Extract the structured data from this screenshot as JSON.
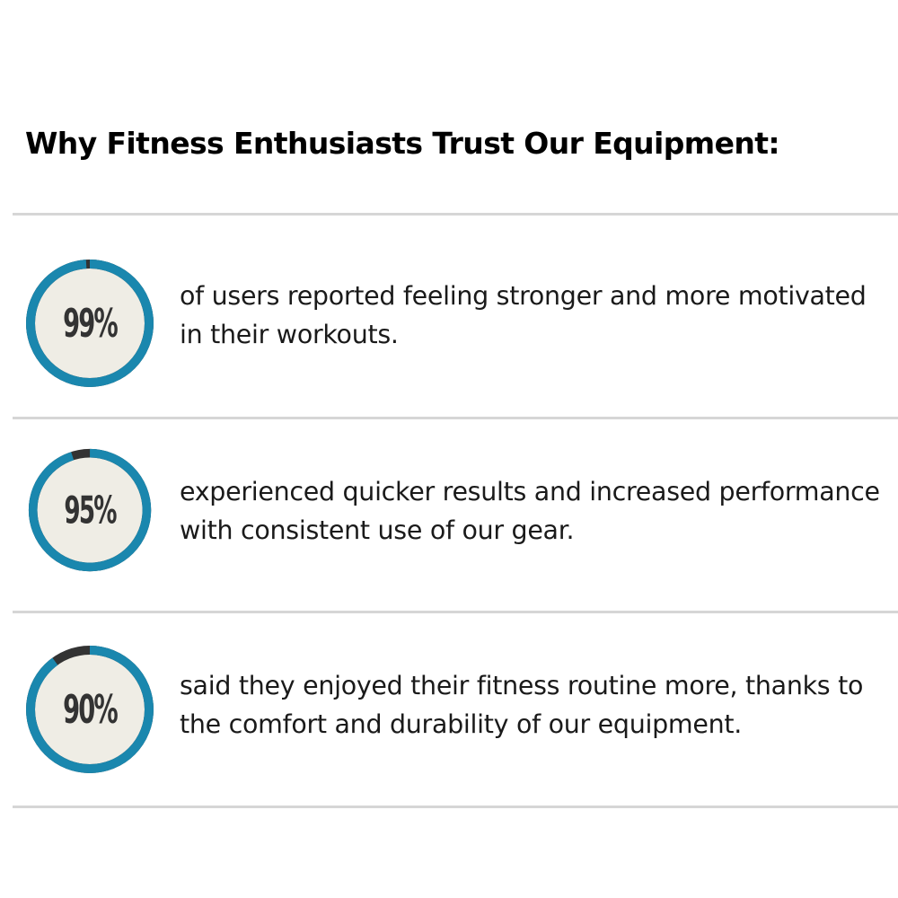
{
  "title": "Why Fitness Enthusiasts Trust Our Equipment:",
  "colors": {
    "ring_progress": "#1a87ae",
    "ring_remainder": "#333333",
    "ring_fill": "#efede5",
    "divider": "#d6d6d6",
    "percent_text": "#333333"
  },
  "stats": [
    {
      "value": 99,
      "label": "99%",
      "text": "of users reported feeling stronger and more motivated in their workouts."
    },
    {
      "value": 95,
      "label": "95%",
      "text": "experienced quicker results and increased performance with consistent use of our gear."
    },
    {
      "value": 90,
      "label": "90%",
      "text": "said they enjoyed their fitness routine more, thanks to the comfort and durability of our equipment."
    }
  ]
}
